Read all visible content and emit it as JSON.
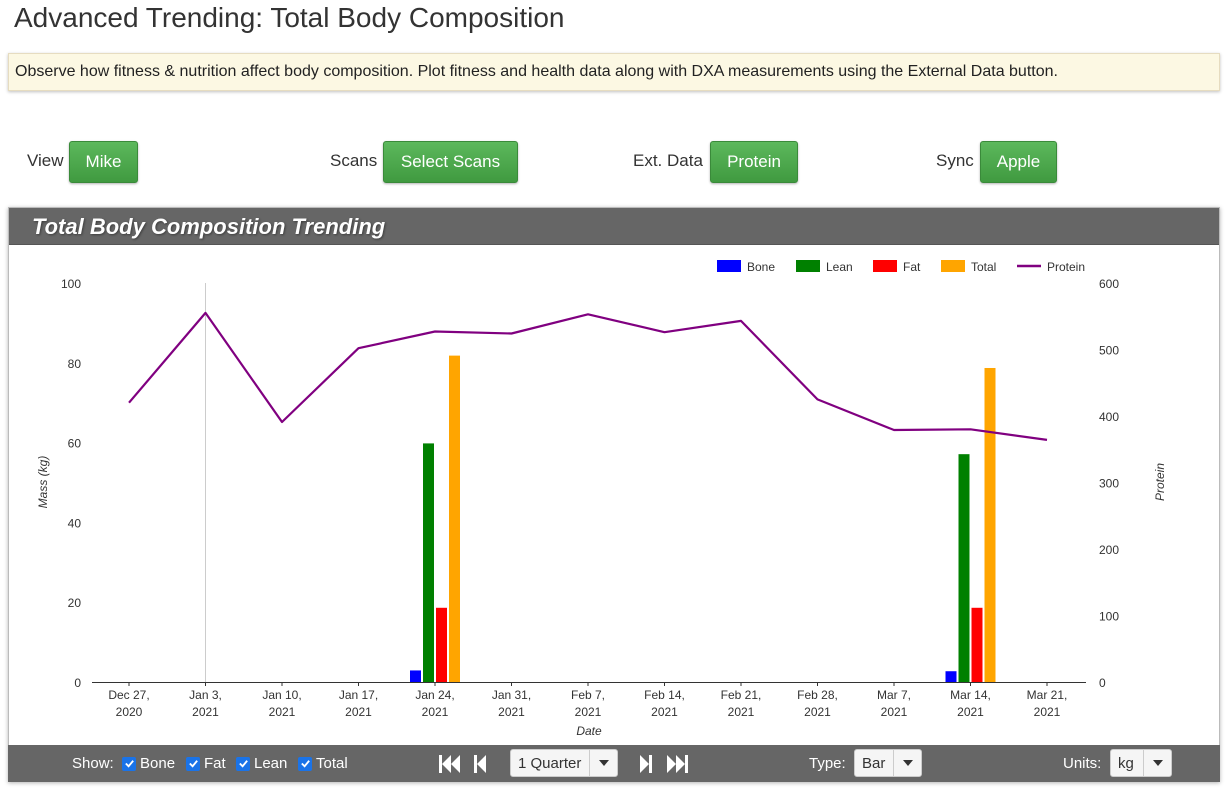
{
  "page": {
    "title": "Advanced Trending: Total Body Composition",
    "info": "Observe how fitness & nutrition affect body composition. Plot fitness and health data along with DXA measurements using the External Data button."
  },
  "controls": {
    "view_label": "View",
    "view_value": "Mike",
    "scans_label": "Scans",
    "scans_value": "Select Scans",
    "ext_label": "Ext. Data",
    "ext_value": "Protein",
    "sync_label": "Sync",
    "sync_value": "Apple"
  },
  "panel": {
    "title": "Total Body Composition Trending"
  },
  "footer": {
    "show_label": "Show:",
    "checks": [
      {
        "label": "Bone",
        "checked": true
      },
      {
        "label": "Fat",
        "checked": true
      },
      {
        "label": "Lean",
        "checked": true
      },
      {
        "label": "Total",
        "checked": true
      }
    ],
    "range_value": "1 Quarter",
    "type_label": "Type:",
    "type_value": "Bar",
    "units_label": "Units:",
    "units_value": "kg"
  },
  "colors": {
    "bone": "#0000ff",
    "lean": "#008000",
    "fat": "#ff0000",
    "total": "#ffa500",
    "protein": "#800080",
    "green": "#4cae4c",
    "header": "#666666"
  },
  "chart_data": {
    "type": "bar",
    "xlabel": "Date",
    "ylabel": "Mass (kg)",
    "y2label": "Protein",
    "ylim": [
      0,
      100
    ],
    "y2lim": [
      0,
      600
    ],
    "yticks": [
      0,
      20,
      40,
      60,
      80,
      100
    ],
    "y2ticks": [
      0,
      100,
      200,
      300,
      400,
      500,
      600
    ],
    "xticks": [
      {
        "date": "2020-12-27",
        "line1": "Dec 27,",
        "line2": "2020"
      },
      {
        "date": "2021-01-03",
        "line1": "Jan 3,",
        "line2": "2021"
      },
      {
        "date": "2021-01-10",
        "line1": "Jan 10,",
        "line2": "2021"
      },
      {
        "date": "2021-01-17",
        "line1": "Jan 17,",
        "line2": "2021"
      },
      {
        "date": "2021-01-24",
        "line1": "Jan 24,",
        "line2": "2021"
      },
      {
        "date": "2021-01-31",
        "line1": "Jan 31,",
        "line2": "2021"
      },
      {
        "date": "2021-02-07",
        "line1": "Feb 7,",
        "line2": "2021"
      },
      {
        "date": "2021-02-14",
        "line1": "Feb 14,",
        "line2": "2021"
      },
      {
        "date": "2021-02-21",
        "line1": "Feb 21,",
        "line2": "2021"
      },
      {
        "date": "2021-02-28",
        "line1": "Feb 28,",
        "line2": "2021"
      },
      {
        "date": "2021-03-07",
        "line1": "Mar 7,",
        "line2": "2021"
      },
      {
        "date": "2021-03-14",
        "line1": "Mar 14,",
        "line2": "2021"
      },
      {
        "date": "2021-03-21",
        "line1": "Mar 21,",
        "line2": "2021"
      }
    ],
    "legend_position": "top-right",
    "series": [
      {
        "name": "Bone",
        "kind": "bar",
        "color": "#0000ff",
        "points": [
          {
            "x": "2021-01-24",
            "y": 2.9
          },
          {
            "x": "2021-03-14",
            "y": 2.7
          }
        ]
      },
      {
        "name": "Lean",
        "kind": "bar",
        "color": "#008000",
        "points": [
          {
            "x": "2021-01-24",
            "y": 59.8
          },
          {
            "x": "2021-03-14",
            "y": 57.1
          }
        ]
      },
      {
        "name": "Fat",
        "kind": "bar",
        "color": "#ff0000",
        "points": [
          {
            "x": "2021-01-24",
            "y": 18.6
          },
          {
            "x": "2021-03-14",
            "y": 18.6
          }
        ]
      },
      {
        "name": "Total",
        "kind": "bar",
        "color": "#ffa500",
        "points": [
          {
            "x": "2021-01-24",
            "y": 81.8
          },
          {
            "x": "2021-03-14",
            "y": 78.7
          }
        ]
      },
      {
        "name": "Protein",
        "kind": "line",
        "axis": "right",
        "color": "#800080",
        "points": [
          {
            "x": "2020-12-27",
            "y": 420
          },
          {
            "x": "2021-01-03",
            "y": 555
          },
          {
            "x": "2021-01-10",
            "y": 391
          },
          {
            "x": "2021-01-17",
            "y": 502
          },
          {
            "x": "2021-01-24",
            "y": 527
          },
          {
            "x": "2021-01-31",
            "y": 524
          },
          {
            "x": "2021-02-07",
            "y": 553
          },
          {
            "x": "2021-02-14",
            "y": 526
          },
          {
            "x": "2021-02-21",
            "y": 543
          },
          {
            "x": "2021-02-28",
            "y": 425
          },
          {
            "x": "2021-03-07",
            "y": 379
          },
          {
            "x": "2021-03-14",
            "y": 380
          },
          {
            "x": "2021-03-21",
            "y": 364
          }
        ]
      }
    ]
  }
}
